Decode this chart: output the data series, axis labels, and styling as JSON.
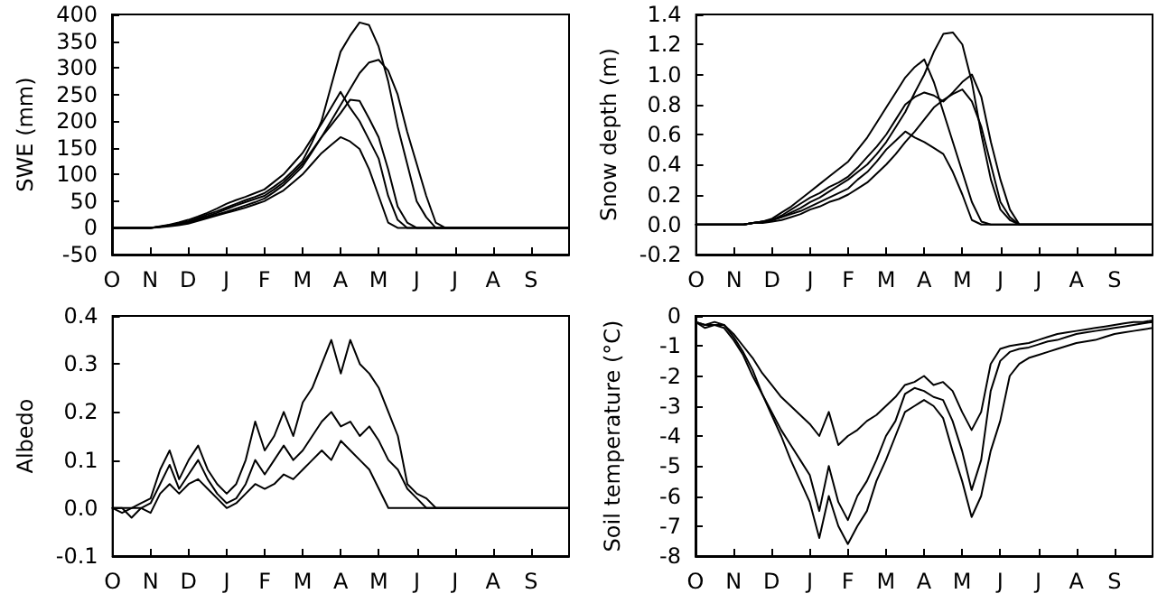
{
  "chart_data": [
    {
      "type": "line",
      "ylabel": "SWE (mm)",
      "categories": [
        "O",
        null,
        null,
        null,
        "N",
        null,
        null,
        null,
        "D",
        null,
        null,
        null,
        "J",
        null,
        null,
        null,
        "F",
        null,
        null,
        null,
        "M",
        null,
        null,
        null,
        "A",
        null,
        null,
        null,
        "M",
        null,
        null,
        null,
        "J",
        null,
        null,
        null,
        "J",
        null,
        null,
        null,
        "A",
        null,
        null,
        null,
        "S",
        null,
        null,
        null,
        null
      ],
      "ylim": [
        -50,
        400
      ],
      "yticks": [
        -50,
        0,
        50,
        100,
        150,
        200,
        250,
        300,
        350,
        400
      ],
      "grid": false,
      "marker": "none",
      "series": [
        {
          "color": "#000000",
          "values": [
            0,
            0,
            0,
            0,
            0,
            2,
            5,
            8,
            12,
            18,
            25,
            31,
            38,
            45,
            52,
            58,
            65,
            77,
            90,
            107,
            125,
            160,
            200,
            265,
            330,
            360,
            385,
            380,
            340,
            275,
            190,
            120,
            50,
            20,
            0,
            0,
            0,
            0,
            0,
            0,
            0,
            0,
            0,
            0,
            0,
            0,
            0,
            0,
            0
          ]
        },
        {
          "color": "#000000",
          "values": [
            0,
            0,
            0,
            0,
            0,
            2,
            4,
            7,
            10,
            15,
            20,
            25,
            30,
            36,
            42,
            48,
            55,
            67,
            80,
            97,
            115,
            142,
            170,
            200,
            230,
            260,
            290,
            310,
            315,
            295,
            250,
            180,
            120,
            60,
            10,
            0,
            0,
            0,
            0,
            0,
            0,
            0,
            0,
            0,
            0,
            0,
            0,
            0,
            0
          ]
        },
        {
          "color": "#000000",
          "values": [
            0,
            0,
            0,
            0,
            0,
            3,
            6,
            10,
            15,
            21,
            28,
            36,
            45,
            52,
            58,
            65,
            72,
            86,
            100,
            120,
            140,
            168,
            195,
            225,
            255,
            225,
            200,
            165,
            130,
            60,
            15,
            0,
            0,
            0,
            0,
            0,
            0,
            0,
            0,
            0,
            0,
            0,
            0,
            0,
            0,
            0,
            0,
            0,
            0
          ]
        },
        {
          "color": "#000000",
          "values": [
            0,
            0,
            0,
            0,
            0,
            1,
            3,
            5,
            8,
            13,
            18,
            23,
            28,
            33,
            38,
            44,
            50,
            60,
            70,
            85,
            100,
            120,
            140,
            155,
            170,
            162,
            148,
            110,
            60,
            10,
            0,
            0,
            0,
            0,
            0,
            0,
            0,
            0,
            0,
            0,
            0,
            0,
            0,
            0,
            0,
            0,
            0,
            0,
            0
          ]
        },
        {
          "color": "#000000",
          "values": [
            0,
            0,
            0,
            0,
            0,
            2,
            5,
            8,
            12,
            17,
            22,
            28,
            35,
            42,
            48,
            54,
            60,
            72,
            85,
            102,
            120,
            145,
            170,
            192,
            215,
            240,
            238,
            205,
            170,
            110,
            40,
            10,
            0,
            0,
            0,
            0,
            0,
            0,
            0,
            0,
            0,
            0,
            0,
            0,
            0,
            0,
            0,
            0,
            0
          ]
        }
      ]
    },
    {
      "type": "line",
      "ylabel": "Snow depth (m)",
      "categories": [
        "O",
        null,
        null,
        null,
        "N",
        null,
        null,
        null,
        "D",
        null,
        null,
        null,
        "J",
        null,
        null,
        null,
        "F",
        null,
        null,
        null,
        "M",
        null,
        null,
        null,
        "A",
        null,
        null,
        null,
        "M",
        null,
        null,
        null,
        "J",
        null,
        null,
        null,
        "J",
        null,
        null,
        null,
        "A",
        null,
        null,
        null,
        "S",
        null,
        null,
        null,
        null
      ],
      "ylim": [
        -0.2,
        1.4
      ],
      "yticks": [
        {
          "value": -0.2,
          "label": "-0.2"
        },
        {
          "value": 0,
          "label": "0.0"
        },
        {
          "value": 0.2,
          "label": "0.2"
        },
        {
          "value": 0.4,
          "label": "0.4"
        },
        {
          "value": 0.6,
          "label": "0.6"
        },
        {
          "value": 0.8,
          "label": "0.8"
        },
        {
          "value": 1,
          "label": "1.0"
        },
        {
          "value": 1.2,
          "label": "1.2"
        },
        {
          "value": 1.4,
          "label": "1.4"
        }
      ],
      "grid": false,
      "marker": "none",
      "series": [
        {
          "color": "#000000",
          "values": [
            0,
            0,
            0,
            0,
            0,
            0,
            0.01,
            0.02,
            0.03,
            0.05,
            0.08,
            0.11,
            0.15,
            0.18,
            0.22,
            0.26,
            0.3,
            0.35,
            0.4,
            0.47,
            0.55,
            0.65,
            0.75,
            0.88,
            1.0,
            1.15,
            1.27,
            1.28,
            1.2,
            0.95,
            0.6,
            0.3,
            0.1,
            0.03,
            0,
            0,
            0,
            0,
            0,
            0,
            0,
            0,
            0,
            0,
            0,
            0,
            0,
            0,
            0
          ]
        },
        {
          "color": "#000000",
          "values": [
            0,
            0,
            0,
            0,
            0,
            0,
            0.01,
            0.02,
            0.04,
            0.08,
            0.12,
            0.17,
            0.22,
            0.27,
            0.32,
            0.37,
            0.42,
            0.5,
            0.58,
            0.68,
            0.78,
            0.88,
            0.98,
            1.05,
            1.1,
            0.95,
            0.75,
            0.55,
            0.35,
            0.15,
            0.02,
            0,
            0,
            0,
            0,
            0,
            0,
            0,
            0,
            0,
            0,
            0,
            0,
            0,
            0,
            0,
            0,
            0,
            0
          ]
        },
        {
          "color": "#000000",
          "values": [
            0,
            0,
            0,
            0,
            0,
            0,
            0.01,
            0.01,
            0.02,
            0.03,
            0.05,
            0.07,
            0.1,
            0.12,
            0.15,
            0.17,
            0.2,
            0.24,
            0.28,
            0.34,
            0.4,
            0.47,
            0.55,
            0.62,
            0.7,
            0.78,
            0.83,
            0.87,
            0.9,
            0.82,
            0.65,
            0.4,
            0.15,
            0.05,
            0,
            0,
            0,
            0,
            0,
            0,
            0,
            0,
            0,
            0,
            0,
            0,
            0,
            0,
            0
          ]
        },
        {
          "color": "#000000",
          "values": [
            0,
            0,
            0,
            0,
            0,
            0,
            0.01,
            0.02,
            0.03,
            0.05,
            0.07,
            0.09,
            0.12,
            0.15,
            0.18,
            0.21,
            0.24,
            0.3,
            0.35,
            0.42,
            0.5,
            0.56,
            0.62,
            0.58,
            0.55,
            0.51,
            0.47,
            0.35,
            0.2,
            0.03,
            0,
            0,
            0,
            0,
            0,
            0,
            0,
            0,
            0,
            0,
            0,
            0,
            0,
            0,
            0,
            0,
            0,
            0,
            0
          ]
        },
        {
          "color": "#000000",
          "values": [
            0,
            0,
            0,
            0,
            0,
            0,
            0.01,
            0.02,
            0.03,
            0.06,
            0.1,
            0.14,
            0.18,
            0.21,
            0.25,
            0.28,
            0.32,
            0.38,
            0.45,
            0.52,
            0.6,
            0.7,
            0.8,
            0.85,
            0.88,
            0.86,
            0.82,
            0.88,
            0.95,
            1.0,
            0.85,
            0.55,
            0.3,
            0.1,
            0,
            0,
            0,
            0,
            0,
            0,
            0,
            0,
            0,
            0,
            0,
            0,
            0,
            0,
            0
          ]
        }
      ]
    },
    {
      "type": "line",
      "ylabel": "Albedo",
      "categories": [
        "O",
        null,
        null,
        null,
        "N",
        null,
        null,
        null,
        "D",
        null,
        null,
        null,
        "J",
        null,
        null,
        null,
        "F",
        null,
        null,
        null,
        "M",
        null,
        null,
        null,
        "A",
        null,
        null,
        null,
        "M",
        null,
        null,
        null,
        "J",
        null,
        null,
        null,
        "J",
        null,
        null,
        null,
        "A",
        null,
        null,
        null,
        "S",
        null,
        null,
        null,
        null
      ],
      "ylim": [
        -0.1,
        0.4
      ],
      "yticks": [
        {
          "value": -0.1,
          "label": "-0.1"
        },
        {
          "value": 0,
          "label": "0.0"
        },
        {
          "value": 0.1,
          "label": "0.1"
        },
        {
          "value": 0.2,
          "label": "0.2"
        },
        {
          "value": 0.3,
          "label": "0.3"
        },
        {
          "value": 0.4,
          "label": "0.4"
        }
      ],
      "grid": false,
      "marker": "none",
      "series": [
        {
          "color": "#000000",
          "values": [
            0,
            -0.01,
            0,
            0.01,
            0.02,
            0.08,
            0.12,
            0.06,
            0.1,
            0.13,
            0.08,
            0.05,
            0.03,
            0.05,
            0.1,
            0.18,
            0.12,
            0.15,
            0.2,
            0.15,
            0.22,
            0.25,
            0.3,
            0.35,
            0.28,
            0.35,
            0.3,
            0.28,
            0.25,
            0.2,
            0.15,
            0.05,
            0.03,
            0.02,
            0,
            0,
            0,
            0,
            0,
            0,
            0,
            0,
            0,
            0,
            0,
            0,
            0,
            0,
            0
          ]
        },
        {
          "color": "#000000",
          "values": [
            0,
            0,
            -0.02,
            0,
            0.01,
            0.05,
            0.09,
            0.04,
            0.07,
            0.1,
            0.06,
            0.03,
            0.01,
            0.02,
            0.05,
            0.1,
            0.07,
            0.1,
            0.13,
            0.1,
            0.12,
            0.15,
            0.18,
            0.2,
            0.17,
            0.18,
            0.15,
            0.17,
            0.14,
            0.1,
            0.08,
            0.04,
            0.02,
            0,
            0,
            0,
            0,
            0,
            0,
            0,
            0,
            0,
            0,
            0,
            0,
            0,
            0,
            0,
            0
          ]
        },
        {
          "color": "#000000",
          "values": [
            0,
            0,
            0,
            0,
            -0.01,
            0.03,
            0.05,
            0.03,
            0.05,
            0.06,
            0.04,
            0.02,
            0,
            0.01,
            0.03,
            0.05,
            0.04,
            0.05,
            0.07,
            0.06,
            0.08,
            0.1,
            0.12,
            0.1,
            0.14,
            0.12,
            0.1,
            0.08,
            0.04,
            0,
            0,
            0,
            0,
            0,
            0,
            0,
            0,
            0,
            0,
            0,
            0,
            0,
            0,
            0,
            0,
            0,
            0,
            0,
            0
          ]
        }
      ]
    },
    {
      "type": "line",
      "ylabel": "Soil temperature (°C)",
      "categories": [
        "O",
        null,
        null,
        null,
        "N",
        null,
        null,
        null,
        "D",
        null,
        null,
        null,
        "J",
        null,
        null,
        null,
        "F",
        null,
        null,
        null,
        "M",
        null,
        null,
        null,
        "A",
        null,
        null,
        null,
        "M",
        null,
        null,
        null,
        "J",
        null,
        null,
        null,
        "J",
        null,
        null,
        null,
        "A",
        null,
        null,
        null,
        "S",
        null,
        null,
        null,
        null
      ],
      "ylim": [
        -8,
        0
      ],
      "yticks": [
        -8,
        -7,
        -6,
        -5,
        -4,
        -3,
        -2,
        -1,
        0
      ],
      "grid": false,
      "marker": "none",
      "series": [
        {
          "color": "#000000",
          "values": [
            -0.2,
            -0.4,
            -0.3,
            -0.3,
            -0.6,
            -1.0,
            -1.4,
            -1.9,
            -2.3,
            -2.7,
            -3.0,
            -3.3,
            -3.6,
            -4.0,
            -3.2,
            -4.3,
            -4.0,
            -3.8,
            -3.5,
            -3.3,
            -3.0,
            -2.7,
            -2.3,
            -2.2,
            -2.0,
            -2.3,
            -2.2,
            -2.5,
            -3.2,
            -3.8,
            -3.2,
            -1.6,
            -1.1,
            -1.0,
            -0.95,
            -0.9,
            -0.8,
            -0.7,
            -0.6,
            -0.55,
            -0.5,
            -0.45,
            -0.4,
            -0.35,
            -0.3,
            -0.25,
            -0.2,
            -0.2,
            -0.15
          ]
        },
        {
          "color": "#000000",
          "values": [
            -0.2,
            -0.3,
            -0.2,
            -0.3,
            -0.7,
            -1.2,
            -1.8,
            -2.6,
            -3.3,
            -4.0,
            -4.8,
            -5.5,
            -6.2,
            -7.4,
            -6.0,
            -7.0,
            -7.6,
            -7.0,
            -6.5,
            -5.5,
            -4.8,
            -4.0,
            -3.2,
            -3.0,
            -2.8,
            -3.0,
            -3.4,
            -4.5,
            -5.5,
            -6.7,
            -6.0,
            -4.5,
            -3.5,
            -2.0,
            -1.6,
            -1.4,
            -1.3,
            -1.2,
            -1.1,
            -1.0,
            -0.9,
            -0.85,
            -0.8,
            -0.7,
            -0.6,
            -0.55,
            -0.5,
            -0.45,
            -0.4
          ]
        },
        {
          "color": "#000000",
          "values": [
            -0.2,
            -0.3,
            -0.3,
            -0.4,
            -0.8,
            -1.3,
            -2.0,
            -2.6,
            -3.2,
            -3.8,
            -4.3,
            -4.8,
            -5.3,
            -6.5,
            -5.0,
            -6.2,
            -6.8,
            -6.0,
            -5.5,
            -4.8,
            -4.0,
            -3.5,
            -2.6,
            -2.4,
            -2.5,
            -2.7,
            -2.8,
            -3.5,
            -4.5,
            -5.8,
            -4.8,
            -2.5,
            -1.5,
            -1.2,
            -1.1,
            -1.05,
            -0.95,
            -0.85,
            -0.8,
            -0.7,
            -0.6,
            -0.55,
            -0.5,
            -0.45,
            -0.4,
            -0.35,
            -0.3,
            -0.25,
            -0.2
          ]
        }
      ]
    }
  ]
}
